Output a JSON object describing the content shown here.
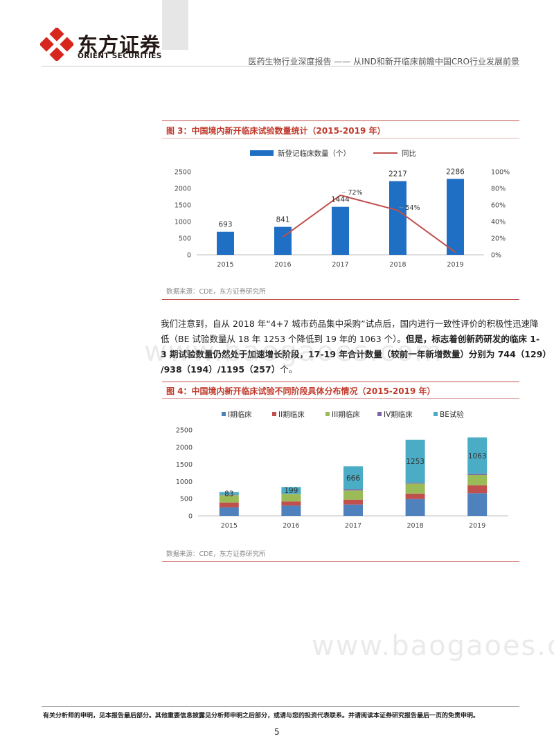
{
  "header": {
    "logo_cn": "东方证券",
    "logo_en": "ORIENT SECURITIES",
    "report_title": "医药生物行业深度报告 —— 从IND和新开临床前瞻中国CRO行业发展前景"
  },
  "figure3": {
    "title": "图 3：中国境内新开临床试验数量统计（2015-2019 年）",
    "source": "数据来源：CDE，东方证券研究所"
  },
  "figure4": {
    "title": "图 4：中国境内新开临床试验不同阶段具体分布情况（2015-2019 年）",
    "source": "数据来源：CDE，东方证券研究所"
  },
  "paragraph": {
    "line1": "我们注意到，自从 2018 年“4+7 城市药品集中采购”试点后，国内进行一致性评价的积极性迅速降",
    "line2a": "低（BE 试验数量从 18 年 1253 个降低到 19 年的 1063 个）。",
    "line2b": "但是，标志着创新药研发的临床 1-",
    "line3": "3 期试验数量仍然处于加速增长阶段，17-19 年合计数量（较前一年新增数量）分别为 744（129）",
    "line4a": "/938（194）/1195（257）",
    "line4b": "个。"
  },
  "watermark": "www.baogaoes.com",
  "footer": {
    "disclaimer": "有关分析师的申明，见本报告最后部分。其他重要信息披露见分析师申明之后部分，或请与您的投资代表联系。并请阅读本证券研究报告最后一页的免责申明。",
    "page_number": "5"
  },
  "colors": {
    "brand_red": "#c0392b",
    "bar_blue": "#1f6fc4",
    "line_red": "#c0504d",
    "phase1": "#4f81bd",
    "phase2": "#c0504d",
    "phase3": "#9bbb59",
    "phase4": "#8064a2",
    "be": "#4bacc6"
  },
  "chart_data": [
    {
      "type": "bar",
      "categories": [
        "2015",
        "2016",
        "2017",
        "2018",
        "2019"
      ],
      "series": [
        {
          "name": "新登记临床数量（个）",
          "type": "bar",
          "axis": "left",
          "values": [
            693,
            841,
            1444,
            2217,
            2286
          ]
        },
        {
          "name": "同比",
          "type": "line",
          "axis": "right",
          "values": [
            null,
            21.4,
            71.7,
            53.5,
            3.1
          ]
        }
      ],
      "data_labels": [
        "693",
        "841",
        "1444",
        "2217",
        "2286"
      ],
      "line_labels": [
        null,
        null,
        "72%",
        "54%",
        null
      ],
      "yticks_left": [
        "0",
        "500",
        "1000",
        "1500",
        "2000",
        "2500"
      ],
      "yticks_right": [
        "0%",
        "20%",
        "40%",
        "60%",
        "80%",
        "100%"
      ],
      "ylim_left": [
        0,
        2500
      ],
      "ylim_right": [
        0,
        100
      ],
      "legend_position": "top",
      "grid": false
    },
    {
      "type": "bar",
      "stacked": true,
      "categories": [
        "2015",
        "2016",
        "2017",
        "2018",
        "2019"
      ],
      "series": [
        {
          "name": "I期临床",
          "values": [
            250,
            300,
            330,
            490,
            660
          ]
        },
        {
          "name": "II期临床",
          "values": [
            140,
            120,
            140,
            160,
            230
          ]
        },
        {
          "name": "III期临床",
          "values": [
            210,
            220,
            270,
            290,
            300
          ]
        },
        {
          "name": "IV期临床",
          "values": [
            10,
            2,
            38,
            24,
            33
          ]
        },
        {
          "name": "BE试验",
          "values": [
            83,
            199,
            666,
            1253,
            1063
          ]
        }
      ],
      "be_labels": [
        "83",
        "199",
        "666",
        "1253",
        "1063"
      ],
      "yticks": [
        "0",
        "500",
        "1000",
        "1500",
        "2000",
        "2500"
      ],
      "ylim": [
        0,
        2500
      ],
      "legend_position": "top",
      "grid": false
    }
  ]
}
